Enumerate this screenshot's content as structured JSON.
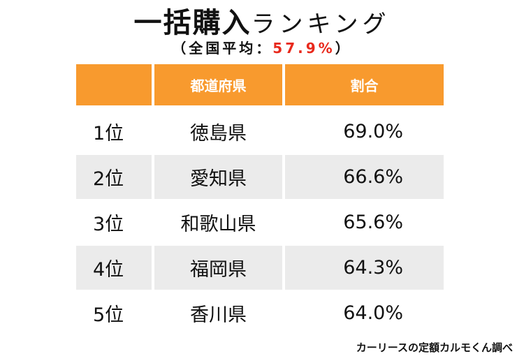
{
  "chart_data": {
    "type": "table",
    "title_main": "一括購入",
    "title_kana": "ランキング",
    "subtitle_prefix": "（全国平均：",
    "subtitle_value": "57.9%",
    "subtitle_suffix": "）",
    "headers": [
      "",
      "都道府県",
      "割合"
    ],
    "rows": [
      {
        "rank": "1位",
        "prefecture": "徳島県",
        "share": "69.0%",
        "value": 69.0
      },
      {
        "rank": "2位",
        "prefecture": "愛知県",
        "share": "66.6%",
        "value": 66.6
      },
      {
        "rank": "3位",
        "prefecture": "和歌山県",
        "share": "65.6%",
        "value": 65.6
      },
      {
        "rank": "4位",
        "prefecture": "福岡県",
        "share": "64.3%",
        "value": 64.3
      },
      {
        "rank": "5位",
        "prefecture": "香川県",
        "share": "64.0%",
        "value": 64.0
      }
    ],
    "national_average": 57.9,
    "source": "カーリースの定額カルモくん調べ"
  },
  "colors": {
    "header_bg": "#f89a2e",
    "header_text": "#ffffff",
    "shaded_row": "#ebebeb",
    "average_highlight": "#e8291c"
  }
}
